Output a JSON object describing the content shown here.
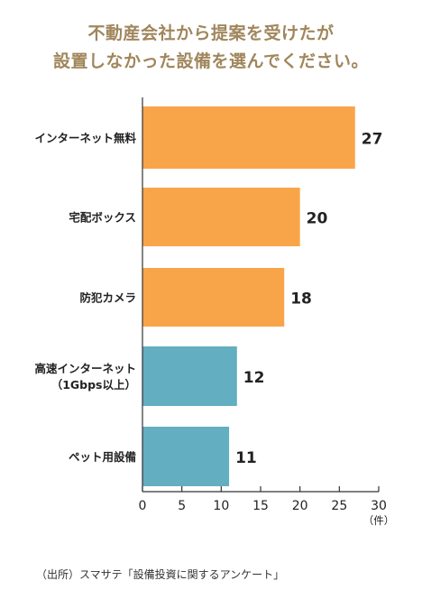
{
  "title": {
    "line1": "不動産会社から提案を受けたが",
    "line2": "設置しなかった設備を選んでください。"
  },
  "source_note": "（出所）スマサテ「設備投資に関するアンケート」",
  "colors": {
    "title": "#a0865c",
    "orange": "#f8a54a",
    "teal": "#63aec0",
    "axis": "#333333"
  },
  "chart_data": {
    "type": "bar",
    "orientation": "horizontal",
    "categories": [
      [
        "インターネット無料"
      ],
      [
        "宅配ボックス"
      ],
      [
        "防犯カメラ"
      ],
      [
        "高速インターネット",
        "（1Gbps以上）"
      ],
      [
        "ペット用設備"
      ]
    ],
    "values": [
      27,
      20,
      18,
      12,
      11
    ],
    "bar_colors": [
      "#f8a54a",
      "#f8a54a",
      "#f8a54a",
      "#63aec0",
      "#63aec0"
    ],
    "xlim": [
      0,
      30
    ],
    "xticks": [
      0,
      5,
      10,
      15,
      20,
      25,
      30
    ],
    "xunit": "（件）",
    "grid": false,
    "data_labels": true
  }
}
